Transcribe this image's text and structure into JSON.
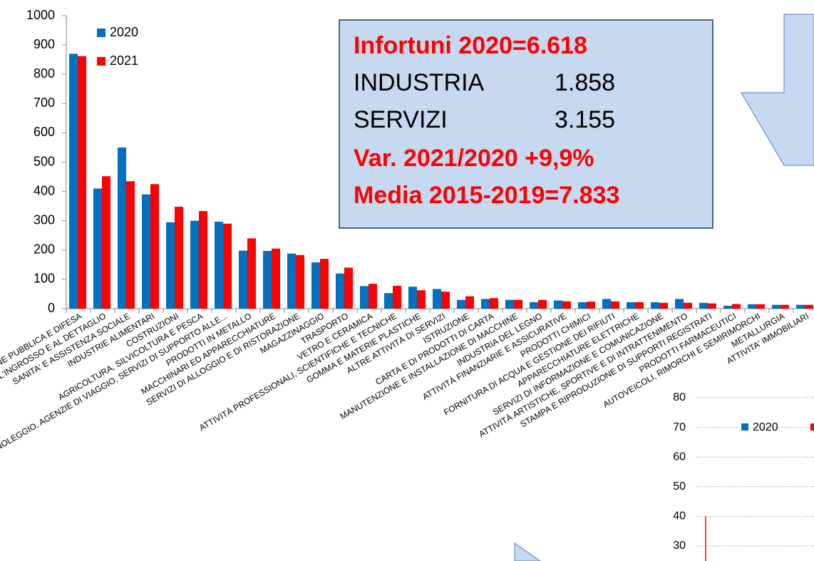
{
  "chart_data": [
    {
      "type": "bar",
      "categories": [
        "AMMINISTRAZIONE PUBBLICA E DIFESA",
        "COMMERCIO ALL'INGROSSO E AL DETTAGLIO",
        "SANITA' E ASSISTENZA SOCIALE",
        "INDUSTRIE ALIMENTARI",
        "COSTRUZIONI",
        "AGRICOLTURA, SILVICOLTURA E PESCA",
        "NOLEGGIO, AGENZIE DI VIAGGIO, SERVIZI DI SUPPORTO ALLE...",
        "PRODOTTI IN METALLO",
        "MACCHINARI ED APPARECCHIATURE",
        "SERVIZI DI ALLOGGIO E DI RISTORAZIONE",
        "MAGAZZINAGGIO",
        "TRASPORTO",
        "VETRO E CERAMICA",
        "ATTIVITÀ PROFESSIONALI, SCIENTIFICHE E TECNICHE",
        "GOMMA E MATERIE PLASTICHE",
        "ALTRE ATTIVITÀ DI SERVIZI",
        "ISTRUZIONE",
        "CARTA E DI PRODOTTI DI CARTA",
        "MANUTENZIONE E INSTALLAZIONE DI MACCHINE",
        "INDUSTRIA DEL LEGNO",
        "ATTIVITÀ FINANZIARIE E ASSICURATIVE",
        "PRODOTTI CHIMICI",
        "FORNITURA DI ACQUA E GESTIONE DEI RIFIUTI",
        "APPARECCHIATURE ELETTRICHE",
        "SERVIZI DI INFORMAZIONE E COMUNICAZIONE",
        "ATTIVITÀ ARTISTICHE, SPORTIVE E DI INTRATTENIMENTO",
        "STAMPA E RIPRODUZIONE DI SUPPORTI REGISTRATI",
        "PRODOTTI FARMACEUTICI",
        "AUTOVEICOLI, RIMORCHI E SEMIRIMORCHI",
        "METALLURGIA",
        "ATTIVITA' IMMOBILIARI"
      ],
      "series": [
        {
          "name": "2020",
          "color": "#0070c0",
          "values": [
            870,
            410,
            550,
            390,
            295,
            300,
            297,
            198,
            197,
            188,
            158,
            120,
            77,
            53,
            75,
            67,
            30,
            33,
            30,
            22,
            28,
            22,
            33,
            22,
            22,
            33,
            20,
            10,
            15,
            13,
            13
          ]
        },
        {
          "name": "2021",
          "color": "#ff0000",
          "values": [
            862,
            452,
            435,
            425,
            348,
            333,
            290,
            240,
            205,
            183,
            170,
            140,
            85,
            78,
            63,
            58,
            42,
            36,
            30,
            30,
            25,
            24,
            25,
            22,
            20,
            20,
            18,
            16,
            15,
            13,
            13
          ]
        }
      ],
      "ylim": [
        0,
        1000
      ],
      "yticks": [
        0,
        100,
        200,
        300,
        400,
        500,
        600,
        700,
        800,
        900,
        1000
      ],
      "grid": false,
      "annotations": {
        "title": "Infortuni 2020=6.618",
        "rows": [
          [
            "INDUSTRIA",
            "1.858"
          ],
          [
            "SERVIZI",
            "3.155"
          ]
        ],
        "lines": [
          "Var. 2021/2020 +9,9%",
          "Media 2015-2019=7.833"
        ]
      }
    },
    {
      "type": "bar",
      "ylim": [
        20,
        80
      ],
      "yticks": [
        30,
        40,
        50,
        60,
        70,
        80
      ],
      "grid": true,
      "series": [
        {
          "name": "2020",
          "color": "#0070c0",
          "values": []
        }
      ]
    }
  ]
}
